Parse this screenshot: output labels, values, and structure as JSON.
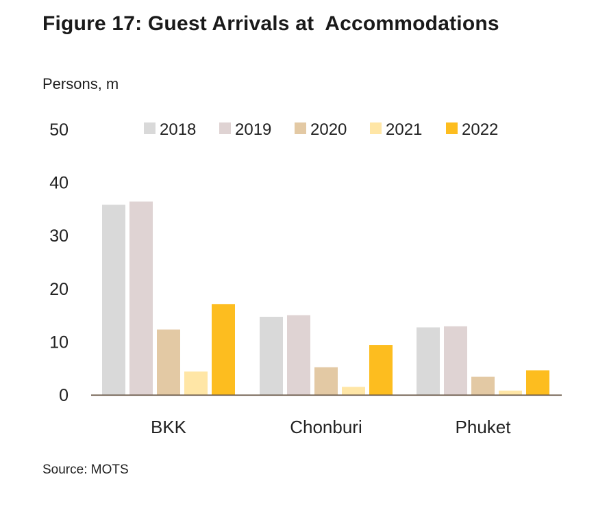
{
  "figure": {
    "title": "Figure 17: Guest Arrivals at  Accommodations",
    "unit": "Persons, m",
    "source": "Source: MOTS"
  },
  "colors": {
    "2018": "#d9d9d9",
    "2019": "#dfd3d3",
    "2020": "#e3c9a4",
    "2021": "#ffe6a6",
    "2022": "#fdbd1f",
    "axis": "#6b5a4a"
  },
  "chart_data": {
    "type": "bar",
    "title": "Figure 17: Guest Arrivals at  Accommodations",
    "ylabel": "Persons, m",
    "xlabel": "",
    "ylim": [
      0,
      50
    ],
    "yticks": [
      0,
      10,
      20,
      30,
      40,
      50
    ],
    "grid": false,
    "legend_position": "top",
    "categories": [
      "BKK",
      "Chonburi",
      "Phuket"
    ],
    "series": [
      {
        "name": "2018",
        "values": [
          35.8,
          14.7,
          12.7
        ]
      },
      {
        "name": "2019",
        "values": [
          36.4,
          15.0,
          12.9
        ]
      },
      {
        "name": "2020",
        "values": [
          12.3,
          5.2,
          3.4
        ]
      },
      {
        "name": "2021",
        "values": [
          4.4,
          1.5,
          0.8
        ]
      },
      {
        "name": "2022",
        "values": [
          17.1,
          9.4,
          4.6
        ]
      }
    ]
  }
}
